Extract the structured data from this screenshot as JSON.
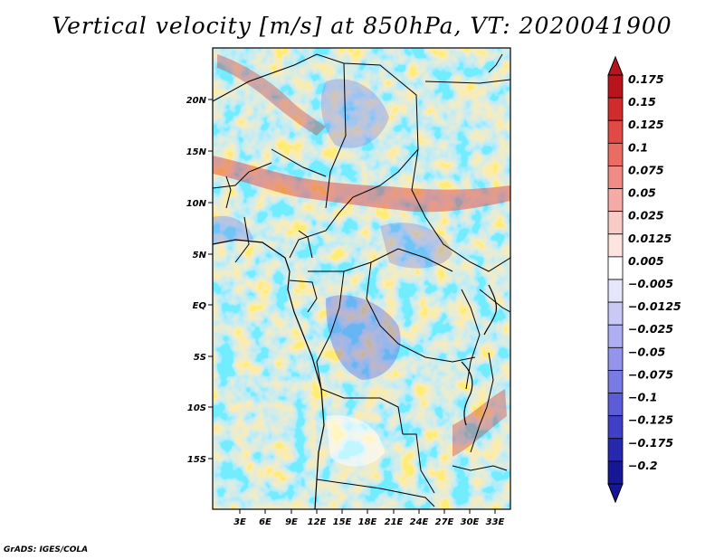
{
  "title": "Vertical velocity [m/s] at 850hPa, VT: 2020041900",
  "credit": "GrADS: IGES/COLA",
  "map": {
    "lat_labels": [
      "20N",
      "15N",
      "10N",
      "5N",
      "EQ",
      "5S",
      "10S",
      "15S"
    ],
    "lon_labels": [
      "3E",
      "6E",
      "9E",
      "12E",
      "15E",
      "18E",
      "21E",
      "24E",
      "27E",
      "30E",
      "33E"
    ]
  },
  "colorbar": {
    "levels": [
      "0.175",
      "0.15",
      "0.125",
      "0.1",
      "0.075",
      "0.05",
      "0.025",
      "0.0125",
      "0.005",
      "−0.005",
      "−0.0125",
      "−0.025",
      "−0.05",
      "−0.075",
      "−0.1",
      "−0.125",
      "−0.175",
      "−0.2"
    ],
    "colors": [
      "#b8141b",
      "#d22b2b",
      "#e04a44",
      "#ea6c63",
      "#f08c85",
      "#f5aca6",
      "#f9cbc6",
      "#fce4e1",
      "#ffffff",
      "#e6e6fb",
      "#c9c9f6",
      "#aeaef2",
      "#9494ec",
      "#7a7ae4",
      "#5c5cd8",
      "#4040c6",
      "#2828ae",
      "#161696"
    ]
  }
}
